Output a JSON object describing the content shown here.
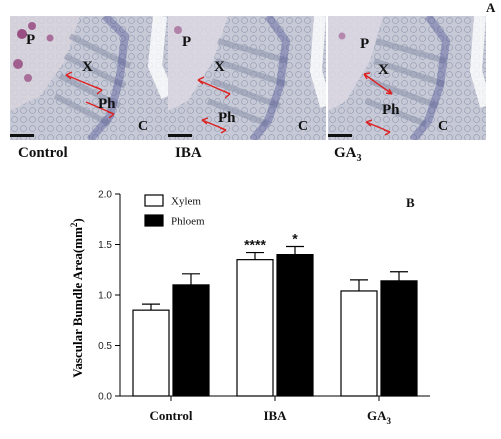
{
  "panel_a": {
    "letter": "A",
    "images": [
      {
        "caption": "Control",
        "labels": {
          "P": "P",
          "X": "X",
          "Ph": "Ph",
          "C": "C"
        }
      },
      {
        "caption": "IBA",
        "labels": {
          "P": "P",
          "X": "X",
          "Ph": "Ph",
          "C": "C"
        }
      },
      {
        "caption": "GA",
        "caption_sub": "3",
        "labels": {
          "P": "P",
          "X": "X",
          "Ph": "Ph",
          "C": "C"
        }
      }
    ]
  },
  "panel_b": {
    "letter": "B"
  },
  "chart_data": {
    "type": "bar",
    "categories": [
      "Control",
      "IBA",
      "GA3"
    ],
    "category_labels": [
      {
        "main": "Control",
        "sub": ""
      },
      {
        "main": "IBA",
        "sub": ""
      },
      {
        "main": "GA",
        "sub": "3"
      }
    ],
    "series": [
      {
        "name": "Xylem",
        "color": "#ffffff",
        "values": [
          0.85,
          1.35,
          1.04
        ],
        "errors": [
          0.06,
          0.07,
          0.11
        ]
      },
      {
        "name": "Phloem",
        "color": "#000000",
        "values": [
          1.1,
          1.4,
          1.14
        ],
        "errors": [
          0.11,
          0.08,
          0.09
        ]
      }
    ],
    "significance": [
      {
        "category": "IBA",
        "series": "Xylem",
        "mark": "****"
      },
      {
        "category": "IBA",
        "series": "Phloem",
        "mark": "*"
      }
    ],
    "ylabel": "Vascular Bumdle Area(mm",
    "ylabel_sup": "2",
    "ylabel_close": ")",
    "ylim": [
      0,
      2.0
    ],
    "yticks": [
      "0.0",
      "0.5",
      "1.0",
      "1.5",
      "2.0"
    ],
    "legend_position": "top-left",
    "grid": false
  }
}
